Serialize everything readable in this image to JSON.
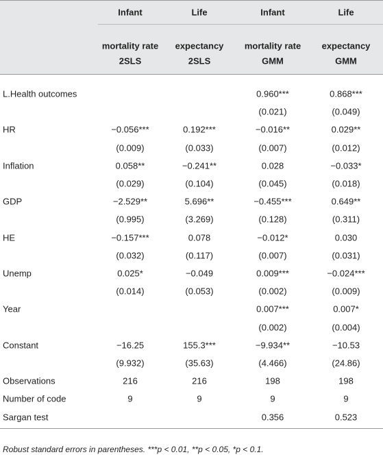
{
  "table": {
    "header_top": [
      "Infant",
      "Life",
      "Infant",
      "Life"
    ],
    "header_sub": [
      [
        "mortality rate",
        "2SLS"
      ],
      [
        "expectancy",
        "2SLS"
      ],
      [
        "mortality rate",
        "GMM"
      ],
      [
        "expectancy",
        "GMM"
      ]
    ],
    "rows": [
      [
        "L.Health outcomes",
        null,
        null,
        "0.960***",
        "0.868***"
      ],
      [
        null,
        null,
        null,
        "(0.021)",
        "(0.049)"
      ],
      [
        "HR",
        "−0.056***",
        "0.192***",
        "−0.016**",
        "0.029**"
      ],
      [
        null,
        "(0.009)",
        "(0.033)",
        "(0.007)",
        "(0.012)"
      ],
      [
        "Inflation",
        "0.058**",
        "−0.241**",
        "0.028",
        "−0.033*"
      ],
      [
        null,
        "(0.029)",
        "(0.104)",
        "(0.045)",
        "(0.018)"
      ],
      [
        "GDP",
        "−2.529**",
        "5.696**",
        "−0.455***",
        "0.649**"
      ],
      [
        null,
        "(0.995)",
        "(3.269)",
        "(0.128)",
        "(0.311)"
      ],
      [
        "HE",
        "−0.157***",
        "0.078",
        "−0.012*",
        "0.030"
      ],
      [
        null,
        "(0.032)",
        "(0.117)",
        "(0.007)",
        "(0.031)"
      ],
      [
        "Unemp",
        "0.025*",
        "−0.049",
        "0.009***",
        "−0.024***"
      ],
      [
        null,
        "(0.014)",
        "(0.053)",
        "(0.002)",
        "(0.009)"
      ],
      [
        "Year",
        null,
        null,
        "0.007***",
        "0.007*"
      ],
      [
        null,
        null,
        null,
        "(0.002)",
        "(0.004)"
      ],
      [
        "Constant",
        "−16.25",
        "155.3***",
        "−9.934**",
        "−10.53"
      ],
      [
        null,
        "(9.932)",
        "(35.63)",
        "(4.466)",
        "(24.86)"
      ],
      [
        "Observations",
        "216",
        "216",
        "198",
        "198"
      ],
      [
        "Number of code",
        "9",
        "9",
        "9",
        "9"
      ],
      [
        "Sargan test",
        null,
        null,
        "0.356",
        "0.523"
      ]
    ],
    "footnote": "Robust standard errors in parentheses. ***p < 0.01, **p < 0.05, *p < 0.1."
  }
}
